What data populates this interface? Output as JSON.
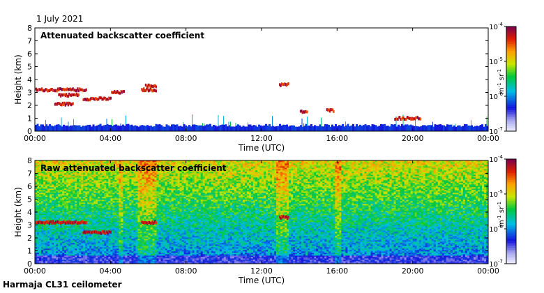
{
  "date_label": "1 July 2021",
  "footer_label": "Harmaja CL31 ceilometer",
  "colors": {
    "low": "#0000c8",
    "mid": "#00c000",
    "high": "#8b0000"
  },
  "chart_data": [
    {
      "type": "heatmap",
      "title": "Attenuated backscatter coefficient",
      "xlabel": "Time (UTC)",
      "ylabel": "Height (km)",
      "x_ticks": [
        "00:00",
        "04:00",
        "08:00",
        "12:00",
        "16:00",
        "20:00",
        "00:00"
      ],
      "y_ticks": [
        "0",
        "1",
        "2",
        "3",
        "4",
        "5",
        "6",
        "7",
        "8"
      ],
      "xlim_hours": [
        0,
        24
      ],
      "ylim": [
        0,
        8
      ],
      "colorbar": {
        "ticks": [
          "10",
          "10",
          "10",
          "10"
        ],
        "exponents": [
          "-4",
          "-5",
          "-6",
          "-7"
        ],
        "unit_label": "m",
        "unit_exp": "-1",
        "unit_label2": "sr",
        "unit_exp2": "-1",
        "scale": "log",
        "range": [
          1e-07,
          0.0001
        ]
      },
      "features": [
        {
          "kind": "surface_layer",
          "t0": 0,
          "t1": 24,
          "h0": 0,
          "h1": 0.45
        },
        {
          "kind": "cloud_layer",
          "t0": 0.0,
          "t1": 2.7,
          "h": 3.2
        },
        {
          "kind": "cloud_layer",
          "t0": 1.2,
          "t1": 2.3,
          "h": 2.8
        },
        {
          "kind": "cloud_layer",
          "t0": 1.0,
          "t1": 2.0,
          "h": 2.1
        },
        {
          "kind": "cloud_layer",
          "t0": 2.5,
          "t1": 4.0,
          "h": 2.5
        },
        {
          "kind": "cloud_layer",
          "t0": 4.0,
          "t1": 4.7,
          "h": 3.0
        },
        {
          "kind": "cloud_layer",
          "t0": 5.6,
          "t1": 6.4,
          "h": 3.2
        },
        {
          "kind": "cloud_layer",
          "t0": 5.8,
          "t1": 6.4,
          "h": 3.5
        },
        {
          "kind": "cloud_layer",
          "t0": 12.9,
          "t1": 13.4,
          "h": 3.6
        },
        {
          "kind": "cloud_layer",
          "t0": 14.0,
          "t1": 14.4,
          "h": 1.5
        },
        {
          "kind": "cloud_layer",
          "t0": 15.4,
          "t1": 15.8,
          "h": 1.6
        },
        {
          "kind": "cloud_layer",
          "t0": 19.0,
          "t1": 20.4,
          "h": 1.0
        }
      ]
    },
    {
      "type": "heatmap",
      "title": "Raw attenuated backscatter coefficient",
      "xlabel": "Time (UTC)",
      "ylabel": "Height (km)",
      "x_ticks": [
        "00:00",
        "04:00",
        "08:00",
        "12:00",
        "16:00",
        "20:00",
        "00:00"
      ],
      "y_ticks": [
        "0",
        "1",
        "2",
        "3",
        "4",
        "5",
        "6",
        "7",
        "8"
      ],
      "xlim_hours": [
        0,
        24
      ],
      "ylim": [
        0,
        8
      ],
      "colorbar": {
        "ticks": [
          "10",
          "10",
          "10",
          "10"
        ],
        "exponents": [
          "-4",
          "-5",
          "-6",
          "-7"
        ],
        "unit_label": "m",
        "unit_exp": "-1",
        "unit_label2": "sr",
        "unit_exp2": "-1",
        "scale": "log",
        "range": [
          1e-07,
          0.0001
        ]
      },
      "features": [
        {
          "kind": "noise_column",
          "t0": 4.4,
          "t1": 4.7
        },
        {
          "kind": "noise_column",
          "t0": 5.5,
          "t1": 6.4
        },
        {
          "kind": "noise_column",
          "t0": 12.8,
          "t1": 13.4
        },
        {
          "kind": "noise_column",
          "t0": 15.9,
          "t1": 16.2
        },
        {
          "kind": "cloud_layer",
          "t0": 0.0,
          "t1": 2.7,
          "h": 3.2
        },
        {
          "kind": "cloud_layer",
          "t0": 2.5,
          "t1": 4.0,
          "h": 2.4
        },
        {
          "kind": "cloud_layer",
          "t0": 5.6,
          "t1": 6.4,
          "h": 3.2
        },
        {
          "kind": "cloud_layer",
          "t0": 12.9,
          "t1": 13.4,
          "h": 3.6
        }
      ]
    }
  ]
}
